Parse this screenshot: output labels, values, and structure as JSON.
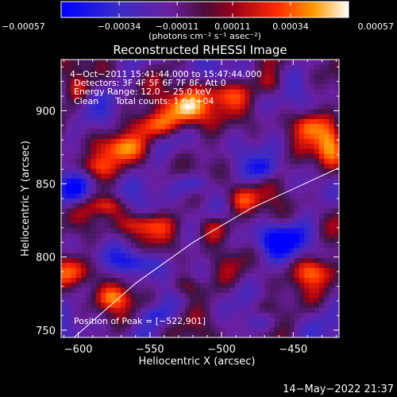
{
  "chart_data": {
    "type": "heatmap",
    "title": "Reconstructed RHESSI Image",
    "xlabel": "Heliocentric X (arcsec)",
    "ylabel": "Heliocentric Y (arcsec)",
    "xlim": [
      -612,
      -418
    ],
    "ylim": [
      745,
      935
    ],
    "xticks": [
      -600,
      -550,
      -500,
      -450
    ],
    "yticks": [
      750,
      800,
      850,
      900
    ],
    "xtick_labels": [
      "−600",
      "−550",
      "−500",
      "−450"
    ],
    "ytick_labels": [
      "750",
      "800",
      "850",
      "900"
    ],
    "colorbar": {
      "range": [
        -0.00057,
        0.00057
      ],
      "ticks": [
        -0.00057,
        -0.00034,
        -0.00011,
        0.00011,
        0.00034,
        0.00057
      ],
      "tick_labels": [
        "−0.00057",
        "−0.00034",
        "−0.00011",
        "0.00011",
        "0.00034",
        "0.00057"
      ],
      "units_label": "(photons cm⁻² s⁻¹ asec⁻²)"
    },
    "annotations": [
      "4−Oct−2011 15:41:44.000 to 15:47:44.000",
      "Detectors: 3F 4F 5F 6F 7F 8F, Att 0",
      "Energy Range: 12.0 − 25.0 keV",
      "Clean      Total counts: 1.6 E+04"
    ],
    "peak_label": "Position of Peak = [−522,901]",
    "peak": {
      "x": -522,
      "y": 901
    },
    "limb": [
      [
        -603,
        745
      ],
      [
        -560,
        782
      ],
      [
        -520,
        810
      ],
      [
        -480,
        833
      ],
      [
        -440,
        851
      ],
      [
        -418,
        861
      ]
    ],
    "hotspots": [
      {
        "x": -523,
        "y": 901,
        "rx": 14,
        "ry": 11,
        "v": 1.0
      },
      {
        "x": -545,
        "y": 890,
        "rx": 18,
        "ry": 9,
        "v": 0.65
      },
      {
        "x": -500,
        "y": 912,
        "rx": 16,
        "ry": 9,
        "v": 0.55
      },
      {
        "x": -570,
        "y": 875,
        "rx": 16,
        "ry": 9,
        "v": 0.55
      },
      {
        "x": -590,
        "y": 862,
        "rx": 14,
        "ry": 8,
        "v": 0.5
      },
      {
        "x": -425,
        "y": 872,
        "rx": 10,
        "ry": 16,
        "v": 0.85
      },
      {
        "x": -440,
        "y": 890,
        "rx": 10,
        "ry": 9,
        "v": 0.5
      },
      {
        "x": -555,
        "y": 822,
        "rx": 16,
        "ry": 8,
        "v": 0.55
      },
      {
        "x": -580,
        "y": 835,
        "rx": 12,
        "ry": 7,
        "v": 0.5
      },
      {
        "x": -505,
        "y": 820,
        "rx": 12,
        "ry": 10,
        "v": 0.55
      },
      {
        "x": -485,
        "y": 840,
        "rx": 11,
        "ry": 9,
        "v": 0.5
      },
      {
        "x": -600,
        "y": 790,
        "rx": 16,
        "ry": 10,
        "v": 0.6
      },
      {
        "x": -575,
        "y": 772,
        "rx": 12,
        "ry": 8,
        "v": 0.5
      },
      {
        "x": -525,
        "y": 780,
        "rx": 12,
        "ry": 8,
        "v": 0.45
      },
      {
        "x": -435,
        "y": 790,
        "rx": 14,
        "ry": 9,
        "v": 0.55
      },
      {
        "x": -470,
        "y": 765,
        "rx": 10,
        "ry": 7,
        "v": 0.35
      },
      {
        "x": -600,
        "y": 915,
        "rx": 8,
        "ry": 8,
        "v": 0.3
      },
      {
        "x": -465,
        "y": 918,
        "rx": 10,
        "ry": 8,
        "v": 0.35
      }
    ],
    "coldspots": [
      {
        "x": -602,
        "y": 845,
        "rx": 10,
        "ry": 10,
        "v": 0.9
      },
      {
        "x": -560,
        "y": 797,
        "rx": 14,
        "ry": 8,
        "v": 0.8
      },
      {
        "x": -460,
        "y": 812,
        "rx": 18,
        "ry": 10,
        "v": 0.85
      },
      {
        "x": -520,
        "y": 850,
        "rx": 12,
        "ry": 8,
        "v": 0.7
      },
      {
        "x": -470,
        "y": 860,
        "rx": 9,
        "ry": 7,
        "v": 0.6
      },
      {
        "x": -545,
        "y": 760,
        "rx": 12,
        "ry": 7,
        "v": 0.5
      }
    ]
  },
  "footer": {
    "timestamp": "14−May−2022 21:37"
  }
}
